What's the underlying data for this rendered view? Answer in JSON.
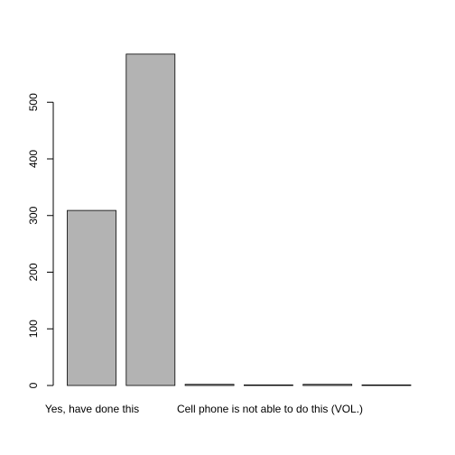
{
  "chart_data": {
    "type": "bar",
    "categories": [
      "Yes, have done this",
      "",
      "",
      "",
      "",
      ""
    ],
    "category_labels_shown": [
      "Yes, have done this",
      "Cell phone is not able to do this (VOL.)"
    ],
    "values": [
      309,
      585,
      2,
      1,
      2,
      1
    ],
    "ylim": [
      0,
      585
    ],
    "yticks": [
      0,
      100,
      200,
      300,
      400,
      500
    ],
    "bar_color": "#b3b3b3",
    "bar_stroke": "#000000",
    "grid": false,
    "legend": "none",
    "title": "",
    "xlabel": "",
    "ylabel": ""
  }
}
